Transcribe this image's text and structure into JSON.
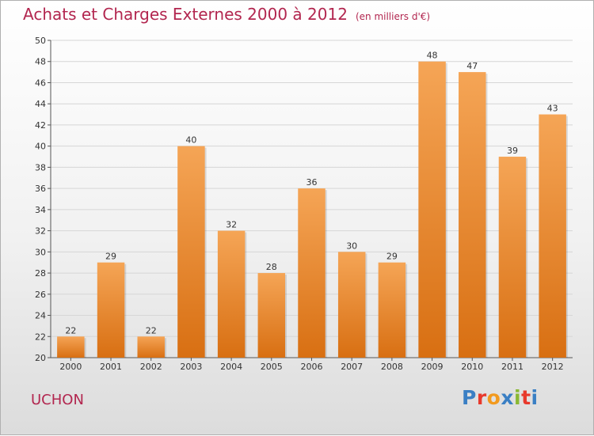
{
  "title": "Achats et Charges Externes 2000 à 2012",
  "subtitle": "(en milliers d'€)",
  "commune": "UCHON",
  "logo": {
    "text": "Proxiti",
    "letter_colors": [
      "#3a7fc4",
      "#e8392c",
      "#f29a1e",
      "#3a7fc4",
      "#8ab833",
      "#e8392c",
      "#3a7fc4"
    ]
  },
  "colors": {
    "bar_top": "#f5a556",
    "bar_bottom": "#d86f12",
    "title": "#b2264f"
  },
  "chart_data": {
    "type": "bar",
    "categories": [
      "2000",
      "2001",
      "2002",
      "2003",
      "2004",
      "2005",
      "2006",
      "2007",
      "2008",
      "2009",
      "2010",
      "2011",
      "2012"
    ],
    "values": [
      22,
      29,
      22,
      40,
      32,
      28,
      36,
      30,
      29,
      48,
      47,
      39,
      43
    ],
    "ylim": [
      20,
      50
    ],
    "yticks": [
      20,
      22,
      24,
      26,
      28,
      30,
      32,
      34,
      36,
      38,
      40,
      42,
      44,
      46,
      48,
      50
    ],
    "grid": true
  }
}
